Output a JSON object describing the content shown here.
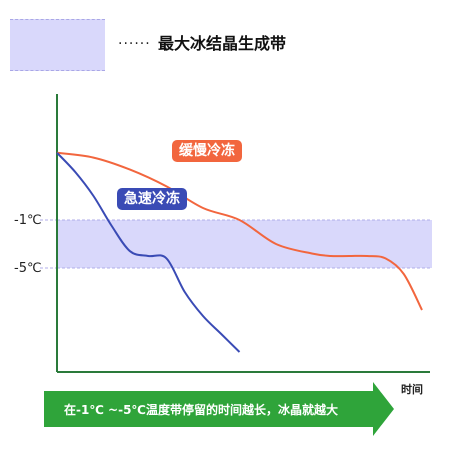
{
  "legend": {
    "dots": "······",
    "label": "最大冰结晶生成带"
  },
  "colors": {
    "band": "#d9d8fb",
    "slow": "#f2663e",
    "fast": "#3a4bb5",
    "arrow": "#2fa43a",
    "axis": "#2a7a3a"
  },
  "chart_data": {
    "type": "line",
    "title": "",
    "xlabel": "时间",
    "ylabel": "",
    "y_ticks": [
      "-1℃",
      "-5℃"
    ],
    "band": {
      "label": "最大冰结晶生成带",
      "from": "-1℃",
      "to": "-5℃"
    },
    "series": [
      {
        "name": "缓慢冷冻",
        "color": "#f2663e",
        "x": [
          0,
          0.1,
          0.2,
          0.3,
          0.4,
          0.5,
          0.6,
          0.7,
          0.75,
          0.8,
          0.85,
          0.9,
          0.95,
          1.0
        ],
        "y": [
          4.6,
          4.2,
          3.2,
          1.8,
          0.0,
          -1.0,
          -3.0,
          -3.8,
          -4.0,
          -4.0,
          -4.0,
          -4.2,
          -5.5,
          -8.5
        ]
      },
      {
        "name": "急速冷冻",
        "color": "#3a4bb5",
        "x": [
          0,
          0.05,
          0.1,
          0.15,
          0.2,
          0.25,
          0.3,
          0.35,
          0.4,
          0.45,
          0.5
        ],
        "y": [
          4.6,
          3.0,
          1.0,
          -1.5,
          -3.6,
          -4.0,
          -4.2,
          -7.0,
          -9.0,
          -10.5,
          -12.0
        ]
      }
    ]
  },
  "arrow": {
    "text": "在-1℃ ~-5℃温度带停留的时间越长，冰晶就越大"
  }
}
